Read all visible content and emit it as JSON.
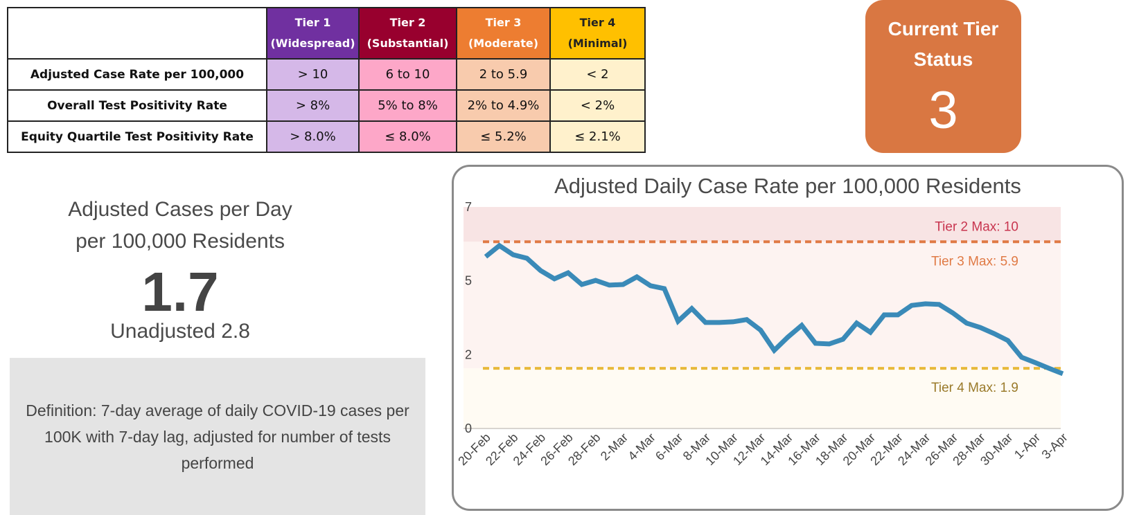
{
  "tier_table": {
    "headers": [
      {
        "line1": "Tier 1",
        "line2": "(Widespread)"
      },
      {
        "line1": "Tier 2",
        "line2": "(Substantial)"
      },
      {
        "line1": "Tier 3",
        "line2": "(Moderate)"
      },
      {
        "line1": "Tier 4",
        "line2": "(Minimal)"
      }
    ],
    "rows": [
      {
        "label": "Adjusted Case Rate per 100,000",
        "values": [
          "> 10",
          "6 to 10",
          "2 to 5.9",
          "< 2"
        ]
      },
      {
        "label": "Overall Test Positivity Rate",
        "values": [
          "> 8%",
          "5% to 8%",
          "2% to 4.9%",
          "< 2%"
        ]
      },
      {
        "label": "Equity Quartile Test Positivity Rate",
        "values": [
          "> 8.0%",
          "≤ 8.0%",
          "≤ 5.2%",
          "≤ 2.1%"
        ]
      }
    ],
    "colors": {
      "tier1": "#7030a0",
      "tier2": "#98002e",
      "tier3": "#ed7d31",
      "tier4": "#ffc000"
    }
  },
  "current_tier": {
    "label": "Current Tier Status",
    "value": "3",
    "color": "#d97742"
  },
  "kpi": {
    "title_line1": "Adjusted Cases per Day",
    "title_line2": "per 100,000 Residents",
    "value": "1.7",
    "unadjusted": "Unadjusted 2.8"
  },
  "definition": "Definition: 7-day average of daily COVID-19 cases per 100K with 7-day lag, adjusted for number of tests performed",
  "chart_data": {
    "type": "line",
    "title": "Adjusted Daily Case Rate per 100,000 Residents",
    "xlabel": "",
    "ylabel": "",
    "ylim": [
      0,
      7
    ],
    "yticks": [
      {
        "value": 7,
        "label": "7"
      },
      {
        "value": 4.667,
        "label": "5"
      },
      {
        "value": 2.333,
        "label": "2"
      },
      {
        "value": 0,
        "label": "0"
      }
    ],
    "x": [
      "20-Feb",
      "21-Feb",
      "22-Feb",
      "23-Feb",
      "24-Feb",
      "25-Feb",
      "26-Feb",
      "27-Feb",
      "28-Feb",
      "1-Mar",
      "2-Mar",
      "3-Mar",
      "4-Mar",
      "5-Mar",
      "6-Mar",
      "7-Mar",
      "8-Mar",
      "9-Mar",
      "10-Mar",
      "11-Mar",
      "12-Mar",
      "13-Mar",
      "14-Mar",
      "15-Mar",
      "16-Mar",
      "17-Mar",
      "18-Mar",
      "19-Mar",
      "20-Mar",
      "21-Mar",
      "22-Mar",
      "23-Mar",
      "24-Mar",
      "25-Mar",
      "26-Mar",
      "27-Mar",
      "28-Mar",
      "29-Mar",
      "30-Mar",
      "31-Mar",
      "1-Apr",
      "2-Apr",
      "3-Apr"
    ],
    "xtick_labels": [
      "20-Feb",
      "22-Feb",
      "24-Feb",
      "26-Feb",
      "28-Feb",
      "2-Mar",
      "4-Mar",
      "6-Mar",
      "8-Mar",
      "10-Mar",
      "12-Mar",
      "14-Mar",
      "16-Mar",
      "18-Mar",
      "20-Mar",
      "22-Mar",
      "24-Mar",
      "26-Mar",
      "28-Mar",
      "30-Mar",
      "1-Apr",
      "3-Apr"
    ],
    "series": [
      {
        "name": "Adjusted Daily Case Rate",
        "color": "#3a8ab8",
        "values": [
          5.43,
          5.78,
          5.49,
          5.38,
          4.99,
          4.73,
          4.92,
          4.55,
          4.68,
          4.53,
          4.55,
          4.79,
          4.51,
          4.42,
          3.39,
          3.79,
          3.35,
          3.35,
          3.37,
          3.44,
          3.11,
          2.47,
          2.89,
          3.26,
          2.69,
          2.67,
          2.82,
          3.33,
          3.04,
          3.59,
          3.59,
          3.89,
          3.94,
          3.92,
          3.65,
          3.33,
          3.19,
          3.0,
          2.78,
          2.25,
          2.08,
          1.9,
          1.73
        ]
      }
    ],
    "bands": [
      {
        "name": "Tier 2 band",
        "from": 5.9,
        "to": 7,
        "color": "#f8e4e4"
      },
      {
        "name": "Tier 3 band",
        "from": 1.9,
        "to": 5.9,
        "color": "#fdf3f1"
      },
      {
        "name": "Tier 4 band",
        "from": 0,
        "to": 1.9,
        "color": "#fffbf3"
      }
    ],
    "reference_lines": [
      {
        "label": "Tier 2 Max: 10",
        "value": 5.9,
        "line_color": "#e07a45",
        "label_color": "#c8354f",
        "label_position": "above"
      },
      {
        "label": "Tier 3 Max: 5.9",
        "value": 5.9,
        "line_color": "#e07a45",
        "label_color": "#e07a45",
        "label_position": "below"
      },
      {
        "label": "Tier 4 Max: 1.9",
        "value": 1.9,
        "line_color": "#e8b93a",
        "label_color": "#9a7a2a",
        "label_position": "below"
      }
    ],
    "grid": false,
    "legend": "none"
  }
}
